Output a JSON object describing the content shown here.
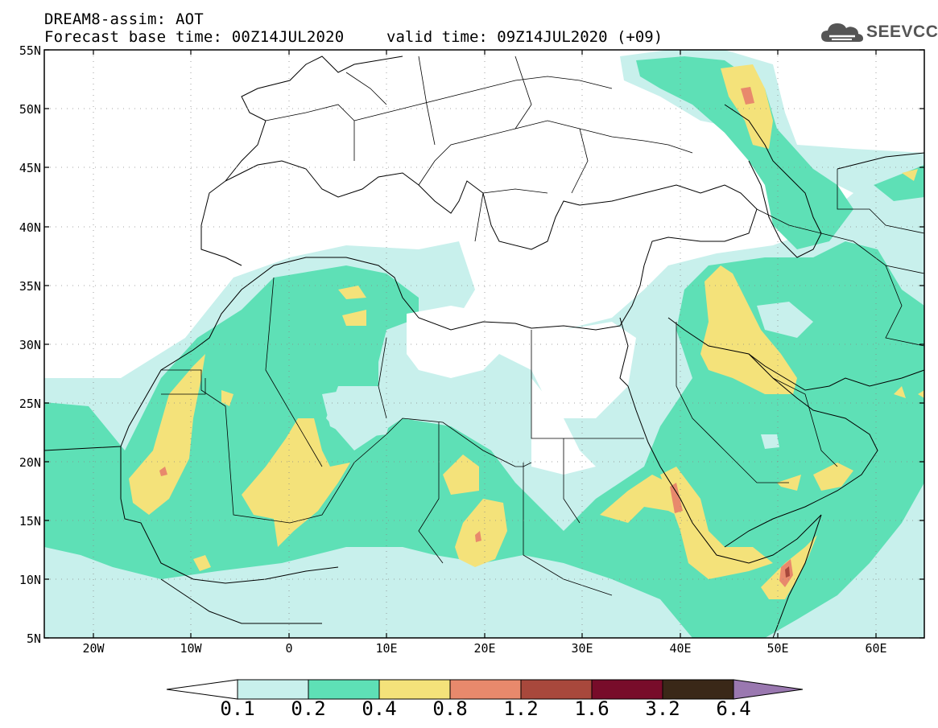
{
  "header": {
    "title": "DREAM8-assim: AOT",
    "base_time": "Forecast base time: 00Z14JUL2020",
    "valid_time": "valid time: 09Z14JUL2020 (+09)"
  },
  "logo": {
    "text": "SEEVCCC",
    "icon": "cloud-icon",
    "color": "#555555"
  },
  "map": {
    "lat_labels": [
      "55N",
      "50N",
      "45N",
      "40N",
      "35N",
      "30N",
      "25N",
      "20N",
      "15N",
      "10N",
      "5N"
    ],
    "lon_labels": [
      "20W",
      "10W",
      "0",
      "10E",
      "20E",
      "30E",
      "40E",
      "50E",
      "60E"
    ],
    "colors": {
      "c01": "#c8f0ec",
      "c02": "#5ee0b6",
      "c04": "#f4e27a",
      "c08": "#e8896c",
      "c12": "#a8483c",
      "c16": "#780c2a",
      "c32": "#3a2818",
      "c64": "#9a78b0"
    }
  },
  "colorbar": {
    "labels": [
      "0.1",
      "0.2",
      "0.4",
      "0.8",
      "1.2",
      "1.6",
      "3.2",
      "6.4"
    ],
    "colors": [
      "#c8f0ec",
      "#5ee0b6",
      "#f4e27a",
      "#e8896c",
      "#a8483c",
      "#780c2a",
      "#3a2818"
    ],
    "under_color": "#ffffff",
    "over_color": "#9a78b0"
  }
}
